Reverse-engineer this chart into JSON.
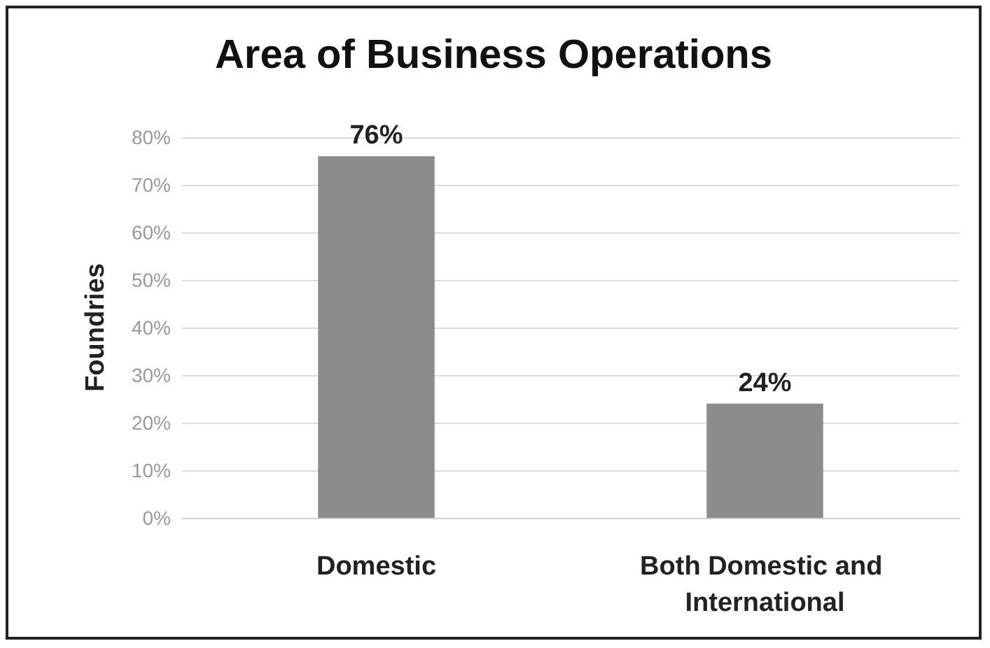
{
  "chart_data": {
    "type": "bar",
    "title": "Area of Business Operations",
    "ylabel": "Foundries",
    "categories": [
      "Domestic",
      "Both Domestic and International"
    ],
    "values": [
      76,
      24
    ],
    "color": "#8c8c8c",
    "value_labels": [
      "76%",
      "24%"
    ],
    "ylim": [
      0,
      80
    ],
    "yticks": [
      {
        "value": 0,
        "label": "0%"
      },
      {
        "value": 10,
        "label": "10%"
      },
      {
        "value": 20,
        "label": "20%"
      },
      {
        "value": 30,
        "label": "30%"
      },
      {
        "value": 40,
        "label": "40%"
      },
      {
        "value": 50,
        "label": "50%"
      },
      {
        "value": 60,
        "label": "60%"
      },
      {
        "value": 70,
        "label": "70%"
      },
      {
        "value": 80,
        "label": "80%"
      }
    ],
    "grid": "y"
  }
}
